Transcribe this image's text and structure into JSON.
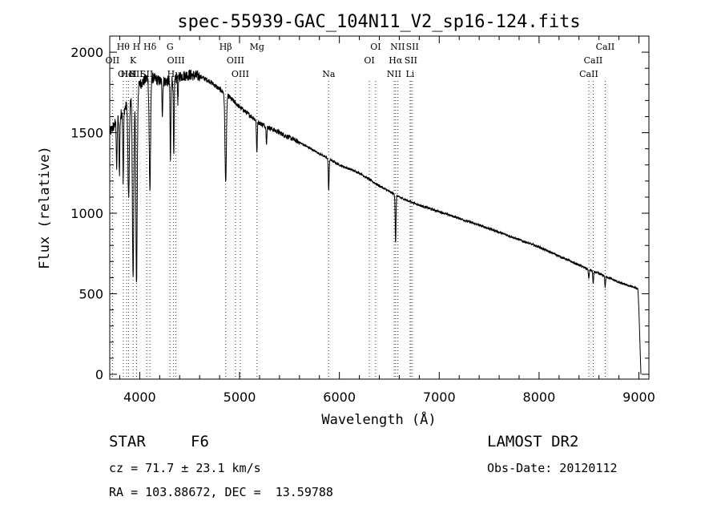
{
  "chart_data": {
    "type": "line",
    "title": "spec-55939-GAC_104N11_V2_sp16-124.fits",
    "xlabel": "Wavelength (Å)",
    "ylabel": "Flux (relative)",
    "xlim": [
      3700,
      9100
    ],
    "ylim": [
      -30,
      2100
    ],
    "xticks": [
      4000,
      5000,
      6000,
      7000,
      8000,
      9000
    ],
    "yticks": [
      0,
      500,
      1000,
      1500,
      2000
    ],
    "series": [
      {
        "name": "flux",
        "color": "#000000",
        "continuum": {
          "x": [
            3700,
            3800,
            3900,
            4000,
            4100,
            4200,
            4300,
            4400,
            4500,
            4600,
            4700,
            4800,
            4900,
            5000,
            5200,
            5400,
            5600,
            5800,
            6000,
            6200,
            6400,
            6600,
            6800,
            7000,
            7500,
            8000,
            8500,
            8700,
            8800,
            8950,
            8990,
            9000,
            9020
          ],
          "y": [
            1500,
            1600,
            1700,
            1800,
            1850,
            1820,
            1820,
            1850,
            1860,
            1850,
            1820,
            1770,
            1720,
            1660,
            1560,
            1500,
            1440,
            1370,
            1300,
            1250,
            1170,
            1100,
            1050,
            1010,
            905,
            790,
            650,
            600,
            570,
            540,
            530,
            400,
            0
          ]
        },
        "absorption_lines": [
          {
            "x": 3770,
            "depth": 300
          },
          {
            "x": 3797,
            "depth": 350
          },
          {
            "x": 3835,
            "depth": 450
          },
          {
            "x": 3889,
            "depth": 600
          },
          {
            "x": 3934,
            "depth": 1150
          },
          {
            "x": 3968,
            "depth": 1200
          },
          {
            "x": 4102,
            "depth": 700
          },
          {
            "x": 4227,
            "depth": 200
          },
          {
            "x": 4308,
            "depth": 500
          },
          {
            "x": 4341,
            "depth": 500
          },
          {
            "x": 4383,
            "depth": 150
          },
          {
            "x": 4861,
            "depth": 550
          },
          {
            "x": 5173,
            "depth": 200
          },
          {
            "x": 5270,
            "depth": 100
          },
          {
            "x": 5893,
            "depth": 200
          },
          {
            "x": 6563,
            "depth": 300
          },
          {
            "x": 8498,
            "depth": 60
          },
          {
            "x": 8542,
            "depth": 80
          },
          {
            "x": 8662,
            "depth": 70
          }
        ]
      }
    ],
    "line_markers": [
      {
        "x": 3727,
        "label": "OII",
        "row": 2
      },
      {
        "x": 3835,
        "label": "Hθ",
        "row": 1
      },
      {
        "x": 3869,
        "label": "OIII",
        "row": 3
      },
      {
        "x": 3889,
        "label": "HeI",
        "row": 3
      },
      {
        "x": 3934,
        "label": "K",
        "row": 2
      },
      {
        "x": 3968,
        "label": "H",
        "row": 1
      },
      {
        "x": 3968,
        "label": "SII",
        "row": 3
      },
      {
        "x": 4102,
        "label": "Hδ",
        "row": 1
      },
      {
        "x": 4070,
        "label": "SII",
        "row": 3
      },
      {
        "x": 4304,
        "label": "G",
        "row": 1
      },
      {
        "x": 4363,
        "label": "OIII",
        "row": 2
      },
      {
        "x": 4340,
        "label": "Hγ",
        "row": 3
      },
      {
        "x": 4861,
        "label": "Hβ",
        "row": 1
      },
      {
        "x": 4959,
        "label": "OIII",
        "row": 2
      },
      {
        "x": 5007,
        "label": "OIII",
        "row": 3
      },
      {
        "x": 5175,
        "label": "Mg",
        "row": 1
      },
      {
        "x": 5893,
        "label": "Na",
        "row": 3
      },
      {
        "x": 6300,
        "label": "OI",
        "row": 2
      },
      {
        "x": 6363,
        "label": "OI",
        "row": 1
      },
      {
        "x": 6548,
        "label": "NII",
        "row": 3
      },
      {
        "x": 6563,
        "label": "Hα",
        "row": 2
      },
      {
        "x": 6583,
        "label": "NII",
        "row": 1
      },
      {
        "x": 6708,
        "label": "Li",
        "row": 3
      },
      {
        "x": 6716,
        "label": "SII",
        "row": 2
      },
      {
        "x": 6731,
        "label": "SII",
        "row": 1
      },
      {
        "x": 8498,
        "label": "CaII",
        "row": 3
      },
      {
        "x": 8542,
        "label": "CaII",
        "row": 2
      },
      {
        "x": 8662,
        "label": "CaII",
        "row": 1
      }
    ]
  },
  "info": {
    "object_class": "STAR",
    "subclass": "F6",
    "survey": "LAMOST DR2",
    "cz": "cz = 71.7 ± 23.1 km/s",
    "obs_date": "Obs-Date: 20120112",
    "coords": "RA = 103.88672, DEC =  13.59788"
  }
}
